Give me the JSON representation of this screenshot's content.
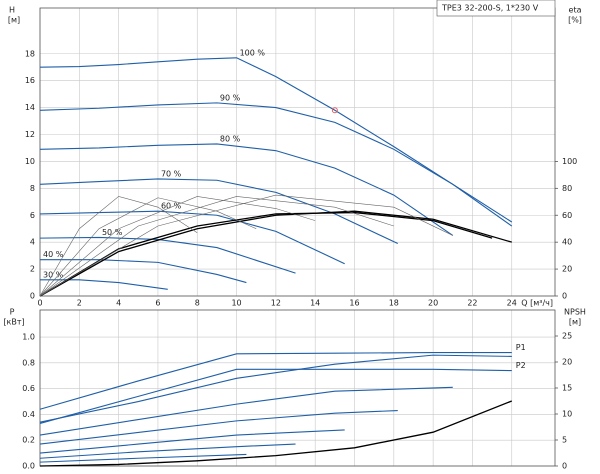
{
  "chart_data": [
    {
      "type": "line",
      "title": "TPE3 32-200-S, 1*230 V",
      "y_label": "H",
      "y_unit": "[м]",
      "y2_label": "eta",
      "y2_unit": "[%]",
      "x_label": "Q [м³/ч]",
      "xlim": [
        0,
        26.2
      ],
      "xticks": [
        0,
        2,
        4,
        6,
        8,
        10,
        12,
        14,
        16,
        18,
        20,
        22,
        24
      ],
      "ylim": [
        0,
        21.4
      ],
      "yticks": [
        0,
        2,
        4,
        6,
        8,
        10,
        12,
        14,
        16,
        18
      ],
      "y2lim": [
        0,
        214
      ],
      "y2ticks": [
        0,
        20,
        40,
        60,
        80,
        100
      ],
      "grid": true,
      "duty_point": {
        "x": 15,
        "y": 13.8,
        "color": "#e06060"
      },
      "series": [
        {
          "name": "100 %",
          "color": "#1f5fa8",
          "x": [
            0,
            2,
            4,
            6,
            8,
            10,
            12,
            15,
            18,
            21,
            24
          ],
          "values": [
            17,
            17.05,
            17.2,
            17.4,
            17.6,
            17.7,
            16.3,
            13.8,
            11.1,
            8.3,
            5.5
          ]
        },
        {
          "name": "90 %",
          "color": "#1f5fa8",
          "x": [
            0,
            3,
            6,
            9,
            12,
            15,
            18,
            21,
            24
          ],
          "values": [
            13.8,
            13.95,
            14.2,
            14.35,
            14.0,
            12.9,
            10.9,
            8.3,
            5.2
          ]
        },
        {
          "name": "80 %",
          "color": "#1f5fa8",
          "x": [
            0,
            3,
            6,
            9,
            12,
            15,
            18,
            21
          ],
          "values": [
            10.9,
            11.0,
            11.2,
            11.3,
            10.8,
            9.5,
            7.5,
            4.5
          ]
        },
        {
          "name": "70 %",
          "color": "#1f5fa8",
          "x": [
            0,
            3,
            6,
            9,
            12,
            15,
            18.2
          ],
          "values": [
            8.3,
            8.5,
            8.7,
            8.6,
            7.7,
            6.1,
            3.9
          ]
        },
        {
          "name": "60 %",
          "color": "#1f5fa8",
          "x": [
            0,
            3,
            6,
            9,
            12,
            15.5
          ],
          "values": [
            6.1,
            6.2,
            6.3,
            6.0,
            4.8,
            2.4
          ]
        },
        {
          "name": "50 %",
          "color": "#1f5fa8",
          "x": [
            0,
            3,
            6,
            9,
            13
          ],
          "values": [
            4.3,
            4.35,
            4.2,
            3.6,
            1.7
          ]
        },
        {
          "name": "40 %",
          "color": "#1f5fa8",
          "x": [
            0,
            3,
            6,
            9,
            10.5
          ],
          "values": [
            2.7,
            2.7,
            2.5,
            1.6,
            1.0
          ]
        },
        {
          "name": "30 %",
          "color": "#1f5fa8",
          "x": [
            0,
            2,
            4,
            6.5
          ],
          "values": [
            1.2,
            1.2,
            1.0,
            0.5
          ]
        },
        {
          "color": "#000000",
          "axis": "y2",
          "x": [
            0,
            4,
            8,
            12,
            16,
            20,
            24
          ],
          "values": [
            0,
            33,
            50,
            60,
            63,
            57,
            40
          ]
        },
        {
          "color": "#000000",
          "axis": "y2",
          "x": [
            0,
            4,
            8,
            12,
            16,
            20,
            23
          ],
          "values": [
            0,
            35,
            52,
            61,
            62,
            56,
            43
          ]
        },
        {
          "color": "#666666",
          "axis": "y2",
          "x": [
            0,
            2,
            4,
            6,
            8
          ],
          "values": [
            0,
            50,
            74,
            66,
            47
          ]
        },
        {
          "color": "#666666",
          "axis": "y2",
          "x": [
            0,
            3,
            6,
            9,
            11
          ],
          "values": [
            0,
            50,
            73,
            63,
            50
          ]
        },
        {
          "color": "#666666",
          "axis": "y2",
          "x": [
            0,
            4,
            8,
            12,
            14
          ],
          "values": [
            0,
            50,
            74,
            65,
            56
          ]
        },
        {
          "color": "#666666",
          "axis": "y2",
          "x": [
            0,
            5,
            10,
            15,
            18
          ],
          "values": [
            0,
            52,
            74,
            66,
            52
          ]
        },
        {
          "color": "#666666",
          "axis": "y2",
          "x": [
            0,
            6,
            12,
            18,
            21
          ],
          "values": [
            0,
            52,
            75,
            66,
            45
          ]
        }
      ]
    },
    {
      "type": "line",
      "y_label": "P",
      "y_unit": "[кВт]",
      "y2_label": "NPSH",
      "y2_unit": "[м]",
      "xlim": [
        0,
        26.2
      ],
      "ylim": [
        0,
        1.21
      ],
      "yticks": [
        {
          "value": 0,
          "label": "0.0"
        },
        0.2,
        0.4,
        0.6,
        0.8,
        {
          "value": 1,
          "label": "1.0"
        }
      ],
      "y2lim": [
        0,
        30
      ],
      "y2ticks": [
        0,
        5,
        10,
        15,
        20,
        25
      ],
      "grid": true,
      "series": [
        {
          "name": "P1",
          "color": "#1f5fa8",
          "x": [
            0,
            5,
            10,
            15,
            20,
            24
          ],
          "values": [
            0.44,
            0.66,
            0.87,
            0.875,
            0.88,
            0.88
          ]
        },
        {
          "name": "P2",
          "color": "#1f5fa8",
          "x": [
            0,
            5,
            10,
            15,
            20,
            24
          ],
          "values": [
            0.33,
            0.54,
            0.75,
            0.75,
            0.75,
            0.74
          ]
        },
        {
          "color": "#1f5fa8",
          "x": [
            0,
            5,
            10,
            15,
            20,
            24
          ],
          "values": [
            0.34,
            0.5,
            0.68,
            0.79,
            0.86,
            0.85
          ]
        },
        {
          "color": "#1f5fa8",
          "x": [
            0,
            5,
            10,
            15,
            21
          ],
          "values": [
            0.24,
            0.36,
            0.48,
            0.58,
            0.61
          ]
        },
        {
          "color": "#1f5fa8",
          "x": [
            0,
            5,
            10,
            15,
            18.2
          ],
          "values": [
            0.17,
            0.26,
            0.35,
            0.41,
            0.43
          ]
        },
        {
          "color": "#1f5fa8",
          "x": [
            0,
            5,
            10,
            15.5
          ],
          "values": [
            0.1,
            0.17,
            0.24,
            0.28
          ]
        },
        {
          "color": "#1f5fa8",
          "x": [
            0,
            5,
            10,
            13
          ],
          "values": [
            0.06,
            0.11,
            0.15,
            0.17
          ]
        },
        {
          "color": "#1f5fa8",
          "x": [
            0,
            5,
            10.5
          ],
          "values": [
            0.03,
            0.06,
            0.09
          ]
        },
        {
          "color": "#000000",
          "axis": "y2",
          "x": [
            0,
            4,
            8,
            12,
            16,
            20,
            24
          ],
          "values": [
            0,
            0.3,
            1,
            2,
            3.5,
            6.5,
            12.5
          ]
        }
      ]
    }
  ]
}
